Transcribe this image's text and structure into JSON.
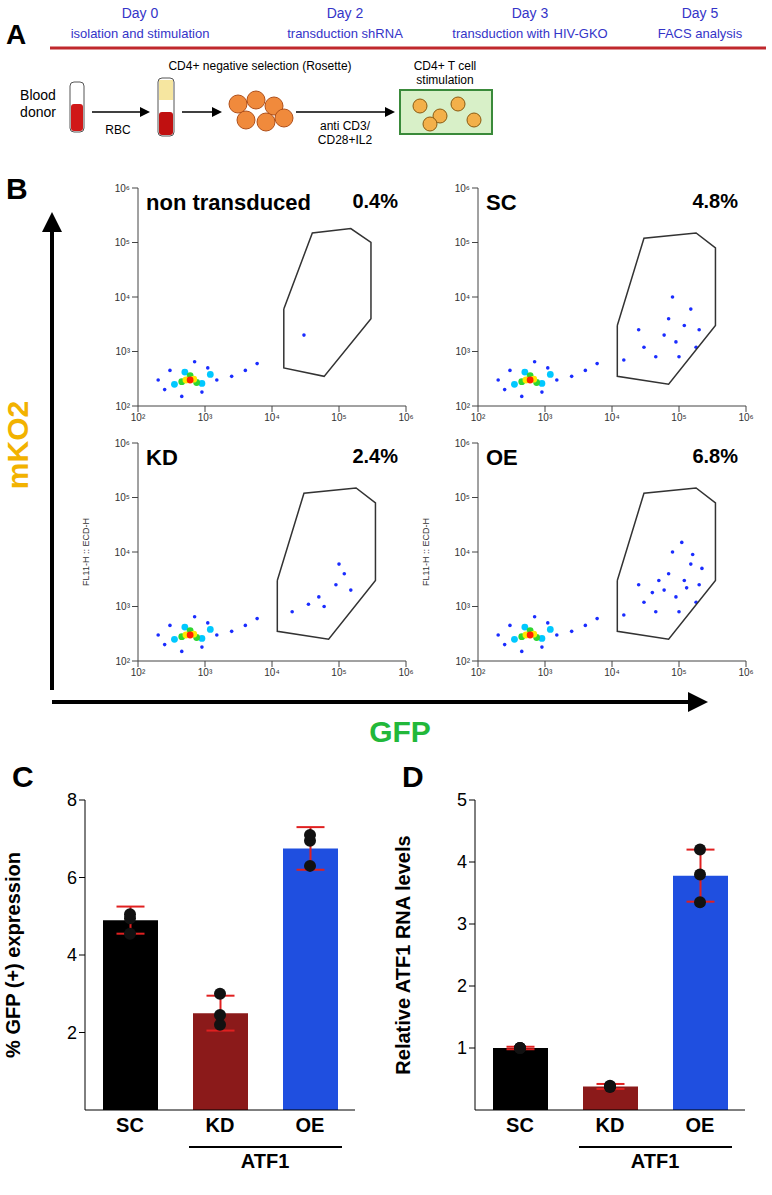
{
  "figure": {
    "A": {
      "letter": "A",
      "timeline": [
        {
          "day": "Day 0",
          "step": "isolation and stimulation"
        },
        {
          "day": "Day 2",
          "step": "transduction shRNA"
        },
        {
          "day": "Day 3",
          "step": "transduction with HIV-GKO"
        },
        {
          "day": "Day 5",
          "step": "FACS analysis"
        }
      ],
      "workflow": {
        "donor": "Blood donor",
        "rbc": "RBC",
        "selection": "CD4+ negative selection (Rosette)",
        "reagents": "anti CD3/ CD28+IL2",
        "stimulation": "CD4+ T cell stimulation"
      }
    },
    "B": {
      "letter": "B",
      "type": "scatter",
      "log": true,
      "x_label": "GFP",
      "y_label": "mKO2",
      "x_color": "#22b83a",
      "y_color": "#f2b200",
      "xlim": [
        100,
        1000000
      ],
      "ylim": [
        100,
        1000000
      ],
      "xticks": [
        {
          "value": 100,
          "label": "10²"
        },
        {
          "value": 1000,
          "label": "10³"
        },
        {
          "value": 10000,
          "label": "10⁴"
        },
        {
          "value": 100000,
          "label": "10⁵"
        },
        {
          "value": 1000000,
          "label": "10⁶"
        }
      ],
      "yticks": [
        {
          "value": 100,
          "label": "10²"
        },
        {
          "value": 1000,
          "label": "10³"
        },
        {
          "value": 10000,
          "label": "10⁴"
        },
        {
          "value": 100000,
          "label": "10⁵"
        },
        {
          "value": 1000000,
          "label": "10⁶"
        }
      ],
      "plots": [
        {
          "title": "non transduced",
          "gate_label": "0.4%",
          "gate": [
            [
              15000,
              6000
            ],
            [
              15000,
              500
            ],
            [
              60000,
              350
            ],
            [
              300000,
              4000
            ],
            [
              300000,
              100000
            ],
            [
              150000,
              180000
            ],
            [
              40000,
              150000
            ],
            [
              15000,
              6000
            ]
          ],
          "series": [
            {
              "color": "#1a2cff",
              "values": [
                [
                  250,
                  200
                ],
                [
                  300,
                  450
                ],
                [
                  450,
                  150
                ],
                [
                  900,
                  180
                ],
                [
                  1500,
                  300
                ],
                [
                  2500,
                  350
                ],
                [
                  4000,
                  450
                ],
                [
                  700,
                  650
                ],
                [
                  1100,
                  500
                ],
                [
                  200,
                  300
                ],
                [
                  6000,
                  600
                ],
                [
                  30000,
                  2000
                ]
              ]
            },
            {
              "color": "#00c8ff",
              "values": [
                [
                  350,
                  250
                ],
                [
                  900,
                  260
                ],
                [
                  500,
                  420
                ],
                [
                  1200,
                  380
                ]
              ]
            },
            {
              "color": "#2fd62f",
              "values": [
                [
                  450,
                  280
                ],
                [
                  750,
                  270
                ],
                [
                  600,
                  360
                ]
              ]
            },
            {
              "color": "#ffe600",
              "values": [
                [
                  520,
                  300
                ],
                [
                  680,
                  310
                ]
              ]
            },
            {
              "color": "#ff2000",
              "values": [
                [
                  600,
                  300
                ]
              ]
            }
          ]
        },
        {
          "title": "SC",
          "gate_label": "4.8%",
          "gate": [
            [
              12000,
              3000
            ],
            [
              12000,
              350
            ],
            [
              70000,
              250
            ],
            [
              350000,
              3000
            ],
            [
              350000,
              80000
            ],
            [
              180000,
              150000
            ],
            [
              30000,
              120000
            ],
            [
              12000,
              3000
            ]
          ],
          "series": [
            {
              "color": "#1a2cff",
              "values": [
                [
                  250,
                  200
                ],
                [
                  300,
                  450
                ],
                [
                  450,
                  150
                ],
                [
                  900,
                  180
                ],
                [
                  1500,
                  300
                ],
                [
                  2500,
                  350
                ],
                [
                  4000,
                  450
                ],
                [
                  700,
                  650
                ],
                [
                  1100,
                  500
                ],
                [
                  200,
                  300
                ],
                [
                  6000,
                  600
                ],
                [
                  15000,
                  700
                ],
                [
                  30000,
                  1200
                ],
                [
                  60000,
                  2000
                ],
                [
                  90000,
                  1500
                ],
                [
                  120000,
                  3000
                ],
                [
                  150000,
                  6000
                ],
                [
                  80000,
                  10000
                ],
                [
                  200000,
                  2500
                ],
                [
                  45000,
                  800
                ],
                [
                  100000,
                  800
                ],
                [
                  70000,
                  4000
                ],
                [
                  180000,
                  1200
                ],
                [
                  25000,
                  2500
                ]
              ]
            },
            {
              "color": "#00c8ff",
              "values": [
                [
                  350,
                  250
                ],
                [
                  900,
                  260
                ],
                [
                  500,
                  420
                ],
                [
                  1200,
                  380
                ]
              ]
            },
            {
              "color": "#2fd62f",
              "values": [
                [
                  450,
                  280
                ],
                [
                  750,
                  270
                ],
                [
                  600,
                  360
                ]
              ]
            },
            {
              "color": "#ffe600",
              "values": [
                [
                  520,
                  300
                ],
                [
                  680,
                  310
                ]
              ]
            },
            {
              "color": "#ff2000",
              "values": [
                [
                  600,
                  300
                ]
              ]
            }
          ]
        },
        {
          "title": "KD",
          "gate_label": "2.4%",
          "y_channel_label": "FL11-H :: ECD-H",
          "gate": [
            [
              12000,
              3000
            ],
            [
              12000,
              350
            ],
            [
              70000,
              250
            ],
            [
              350000,
              3000
            ],
            [
              350000,
              80000
            ],
            [
              180000,
              150000
            ],
            [
              30000,
              120000
            ],
            [
              12000,
              3000
            ]
          ],
          "series": [
            {
              "color": "#1a2cff",
              "values": [
                [
                  250,
                  200
                ],
                [
                  300,
                  450
                ],
                [
                  450,
                  150
                ],
                [
                  900,
                  180
                ],
                [
                  1500,
                  300
                ],
                [
                  2500,
                  350
                ],
                [
                  4000,
                  450
                ],
                [
                  700,
                  650
                ],
                [
                  1100,
                  500
                ],
                [
                  200,
                  300
                ],
                [
                  6000,
                  600
                ],
                [
                  20000,
                  800
                ],
                [
                  50000,
                  1500
                ],
                [
                  90000,
                  2500
                ],
                [
                  120000,
                  4000
                ],
                [
                  60000,
                  1000
                ],
                [
                  150000,
                  2000
                ],
                [
                  35000,
                  1100
                ],
                [
                  100000,
                  6000
                ]
              ]
            },
            {
              "color": "#00c8ff",
              "values": [
                [
                  350,
                  250
                ],
                [
                  900,
                  260
                ],
                [
                  500,
                  420
                ],
                [
                  1200,
                  380
                ]
              ]
            },
            {
              "color": "#2fd62f",
              "values": [
                [
                  450,
                  280
                ],
                [
                  750,
                  270
                ],
                [
                  600,
                  360
                ]
              ]
            },
            {
              "color": "#ffe600",
              "values": [
                [
                  520,
                  300
                ],
                [
                  680,
                  310
                ]
              ]
            },
            {
              "color": "#ff2000",
              "values": [
                [
                  600,
                  300
                ]
              ]
            }
          ]
        },
        {
          "title": "OE",
          "gate_label": "6.8%",
          "y_channel_label": "FL11-H :: ECD-H",
          "gate": [
            [
              12000,
              3000
            ],
            [
              12000,
              350
            ],
            [
              70000,
              250
            ],
            [
              350000,
              3000
            ],
            [
              350000,
              80000
            ],
            [
              180000,
              150000
            ],
            [
              30000,
              120000
            ],
            [
              12000,
              3000
            ]
          ],
          "series": [
            {
              "color": "#1a2cff",
              "values": [
                [
                  250,
                  200
                ],
                [
                  300,
                  450
                ],
                [
                  450,
                  150
                ],
                [
                  900,
                  180
                ],
                [
                  1500,
                  300
                ],
                [
                  2500,
                  350
                ],
                [
                  4000,
                  450
                ],
                [
                  700,
                  650
                ],
                [
                  1100,
                  500
                ],
                [
                  200,
                  300
                ],
                [
                  6000,
                  600
                ],
                [
                  15000,
                  700
                ],
                [
                  30000,
                  1200
                ],
                [
                  60000,
                  2000
                ],
                [
                  90000,
                  1500
                ],
                [
                  120000,
                  3000
                ],
                [
                  150000,
                  6000
                ],
                [
                  80000,
                  10000
                ],
                [
                  200000,
                  2500
                ],
                [
                  45000,
                  800
                ],
                [
                  100000,
                  800
                ],
                [
                  70000,
                  4000
                ],
                [
                  180000,
                  1200
                ],
                [
                  25000,
                  2500
                ],
                [
                  110000,
                  15000
                ],
                [
                  50000,
                  3000
                ],
                [
                  160000,
                  9000
                ],
                [
                  40000,
                  1800
                ],
                [
                  220000,
                  5000
                ],
                [
                  130000,
                  2200
                ]
              ]
            },
            {
              "color": "#00c8ff",
              "values": [
                [
                  350,
                  250
                ],
                [
                  900,
                  260
                ],
                [
                  500,
                  420
                ],
                [
                  1200,
                  380
                ]
              ]
            },
            {
              "color": "#2fd62f",
              "values": [
                [
                  450,
                  280
                ],
                [
                  750,
                  270
                ],
                [
                  600,
                  360
                ]
              ]
            },
            {
              "color": "#ffe600",
              "values": [
                [
                  520,
                  300
                ],
                [
                  680,
                  310
                ]
              ]
            },
            {
              "color": "#ff2000",
              "values": [
                [
                  600,
                  300
                ]
              ]
            }
          ]
        }
      ]
    }
  },
  "chart_data": [
    {
      "letter": "C",
      "type": "bar",
      "y_label": "% GFP (+) expression",
      "categories": [
        "SC",
        "KD",
        "OE"
      ],
      "values": [
        4.9,
        2.5,
        6.75
      ],
      "errors": [
        0.35,
        0.45,
        0.55
      ],
      "points": [
        [
          4.55,
          4.95,
          5.05
        ],
        [
          2.2,
          2.45,
          3.0
        ],
        [
          6.3,
          6.95,
          7.1
        ]
      ],
      "colors": [
        "#000000",
        "#8b1a1a",
        "#1f4fe0"
      ],
      "group_label": "ATF1",
      "group_categories": [
        "KD",
        "OE"
      ],
      "ylim": [
        0,
        8
      ],
      "yticks": [
        2,
        4,
        6,
        8
      ]
    },
    {
      "letter": "D",
      "type": "bar",
      "y_label": "Relative ATF1 RNA levels",
      "categories": [
        "SC",
        "KD",
        "OE"
      ],
      "values": [
        1.0,
        0.38,
        3.78
      ],
      "errors": [
        0.02,
        0.04,
        0.42
      ],
      "points": [
        [
          1.0,
          1.0,
          1.0
        ],
        [
          0.37,
          0.39,
          0.38
        ],
        [
          3.35,
          3.8,
          4.2
        ]
      ],
      "colors": [
        "#000000",
        "#8b1a1a",
        "#1f4fe0"
      ],
      "group_label": "ATF1",
      "group_categories": [
        "KD",
        "OE"
      ],
      "ylim": [
        0,
        5
      ],
      "yticks": [
        1,
        2,
        3,
        4,
        5
      ]
    }
  ]
}
